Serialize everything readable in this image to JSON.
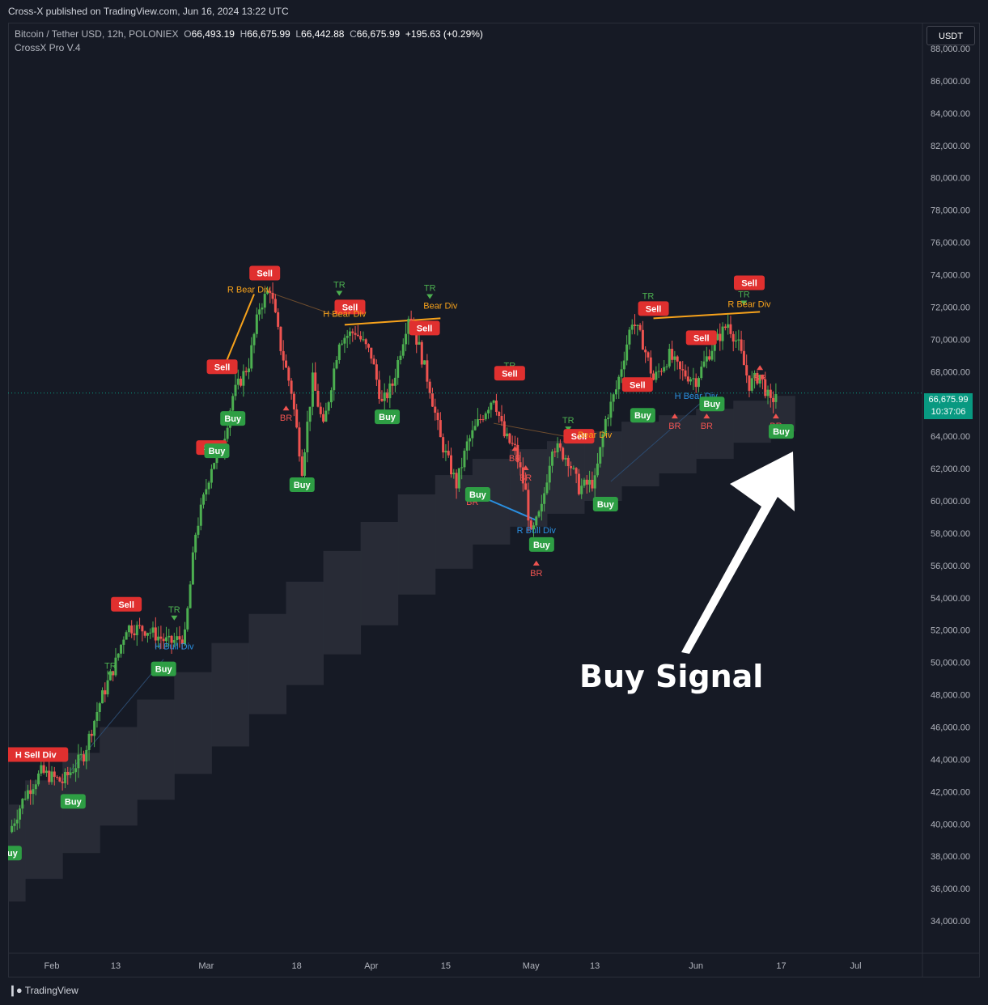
{
  "header": {
    "published": "Cross-X published on TradingView.com, Jun 16, 2024 13:22 UTC"
  },
  "legend": {
    "symbol": "Bitcoin / Tether USD, 12h, POLONIEX",
    "o_label": "O",
    "o": "66,493.19",
    "h_label": "H",
    "h": "66,675.99",
    "l_label": "L",
    "l": "66,442.88",
    "c_label": "C",
    "c": "66,675.99",
    "change": "+195.63 (+0.29%)",
    "indicator": "CrossX Pro V.4"
  },
  "currency": "USDT",
  "price_badge": {
    "price": "66,675.99",
    "countdown": "10:37:06"
  },
  "annotation": "Buy Signal",
  "footer": {
    "brand": "TradingView"
  },
  "colors": {
    "background": "#161a25",
    "up": "#4caf50",
    "down": "#ef5350",
    "buy_label": "#2e9e44",
    "sell_label": "#e0302f",
    "divergence": "#f7a21b",
    "bull_div": "#2a8fe0",
    "cloud": "#2a2e39",
    "price_badge": "#089981"
  },
  "chart_data": {
    "type": "candlestick",
    "y_axis": {
      "min": 32000,
      "max": 88000,
      "step": 2000,
      "labels": [
        "34,000.00",
        "36,000.00",
        "38,000.00",
        "40,000.00",
        "42,000.00",
        "44,000.00",
        "46,000.00",
        "48,000.00",
        "50,000.00",
        "52,000.00",
        "54,000.00",
        "56,000.00",
        "58,000.00",
        "60,000.00",
        "62,000.00",
        "64,000.00",
        "66,000.00",
        "68,000.00",
        "70,000.00",
        "72,000.00",
        "74,000.00",
        "76,000.00",
        "78,000.00",
        "80,000.00",
        "82,000.00",
        "84,000.00",
        "86,000.00",
        "88,000.00"
      ]
    },
    "x_axis": {
      "ticks": [
        {
          "label": "Feb",
          "date": "2024-02-01"
        },
        {
          "label": "13",
          "date": "2024-02-13"
        },
        {
          "label": "Mar",
          "date": "2024-03-01"
        },
        {
          "label": "18",
          "date": "2024-03-18"
        },
        {
          "label": "Apr",
          "date": "2024-04-01"
        },
        {
          "label": "15",
          "date": "2024-04-15"
        },
        {
          "label": "May",
          "date": "2024-05-01"
        },
        {
          "label": "13",
          "date": "2024-05-13"
        },
        {
          "label": "Jun",
          "date": "2024-06-01"
        },
        {
          "label": "17",
          "date": "2024-06-17"
        },
        {
          "label": "Jul",
          "date": "2024-07-01"
        }
      ]
    },
    "price_path": [
      [
        "2024-01-24",
        39500
      ],
      [
        "2024-01-27",
        41800
      ],
      [
        "2024-01-30",
        43200
      ],
      [
        "2024-02-03",
        42600
      ],
      [
        "2024-02-07",
        44300
      ],
      [
        "2024-02-10",
        47500
      ],
      [
        "2024-02-13",
        50000
      ],
      [
        "2024-02-15",
        52200
      ],
      [
        "2024-02-19",
        52000
      ],
      [
        "2024-02-23",
        51200
      ],
      [
        "2024-02-26",
        51600
      ],
      [
        "2024-02-28",
        58000
      ],
      [
        "2024-03-02",
        62200
      ],
      [
        "2024-03-04",
        63400
      ],
      [
        "2024-03-06",
        66500
      ],
      [
        "2024-03-09",
        68500
      ],
      [
        "2024-03-11",
        72000
      ],
      [
        "2024-03-13",
        73200
      ],
      [
        "2024-03-15",
        69500
      ],
      [
        "2024-03-17",
        66800
      ],
      [
        "2024-03-19",
        62000
      ],
      [
        "2024-03-21",
        67500
      ],
      [
        "2024-03-23",
        64500
      ],
      [
        "2024-03-26",
        70000
      ],
      [
        "2024-03-29",
        70500
      ],
      [
        "2024-04-01",
        69000
      ],
      [
        "2024-04-03",
        66000
      ],
      [
        "2024-04-05",
        67200
      ],
      [
        "2024-04-08",
        71500
      ],
      [
        "2024-04-10",
        69500
      ],
      [
        "2024-04-12",
        67000
      ],
      [
        "2024-04-14",
        63800
      ],
      [
        "2024-04-17",
        61000
      ],
      [
        "2024-04-19",
        63500
      ],
      [
        "2024-04-21",
        64800
      ],
      [
        "2024-04-24",
        66500
      ],
      [
        "2024-04-26",
        64000
      ],
      [
        "2024-04-28",
        63200
      ],
      [
        "2024-04-30",
        60500
      ],
      [
        "2024-05-01",
        57800
      ],
      [
        "2024-05-03",
        59500
      ],
      [
        "2024-05-05",
        63500
      ],
      [
        "2024-05-08",
        62600
      ],
      [
        "2024-05-10",
        60800
      ],
      [
        "2024-05-13",
        61200
      ],
      [
        "2024-05-15",
        65000
      ],
      [
        "2024-05-17",
        66900
      ],
      [
        "2024-05-20",
        71200
      ],
      [
        "2024-05-22",
        69800
      ],
      [
        "2024-05-24",
        67500
      ],
      [
        "2024-05-27",
        69000
      ],
      [
        "2024-05-29",
        68000
      ],
      [
        "2024-06-01",
        67500
      ],
      [
        "2024-06-04",
        69500
      ],
      [
        "2024-06-07",
        71000
      ],
      [
        "2024-06-09",
        69600
      ],
      [
        "2024-06-11",
        67200
      ],
      [
        "2024-06-13",
        67800
      ],
      [
        "2024-06-15",
        66000
      ],
      [
        "2024-06-16",
        66676
      ]
    ],
    "signals": [
      {
        "text": "Buy",
        "type": "buy",
        "date": "2024-01-24",
        "price": 38200
      },
      {
        "text": "H Sell Div",
        "type": "sell",
        "date": "2024-01-29",
        "price": 44300
      },
      {
        "text": "Buy",
        "type": "buy",
        "date": "2024-02-05",
        "price": 41400
      },
      {
        "text": "TR",
        "type": "tr",
        "date": "2024-02-12",
        "price": 49600
      },
      {
        "text": "Sell",
        "type": "sell",
        "date": "2024-02-15",
        "price": 53600
      },
      {
        "text": "Buy",
        "type": "buy",
        "date": "2024-02-22",
        "price": 49600
      },
      {
        "text": "H Bull Div",
        "type": "bull",
        "date": "2024-02-24",
        "price": 50800
      },
      {
        "text": "TR",
        "type": "tr",
        "date": "2024-02-24",
        "price": 53100
      },
      {
        "text": "Sell",
        "type": "sell",
        "date": "2024-03-02",
        "price": 63300
      },
      {
        "text": "Buy",
        "type": "buy",
        "date": "2024-03-03",
        "price": 63100
      },
      {
        "text": "Sell",
        "type": "sell",
        "date": "2024-03-04",
        "price": 68300
      },
      {
        "text": "Buy",
        "type": "buy",
        "date": "2024-03-06",
        "price": 65100
      },
      {
        "text": "R Bear Div",
        "type": "div",
        "date": "2024-03-09",
        "price": 72900
      },
      {
        "text": "Sell",
        "type": "sell",
        "date": "2024-03-12",
        "price": 74100
      },
      {
        "text": "BR",
        "type": "br",
        "date": "2024-03-16",
        "price": 65400
      },
      {
        "text": "Buy",
        "type": "buy",
        "date": "2024-03-19",
        "price": 61000
      },
      {
        "text": "TR",
        "type": "tr",
        "date": "2024-03-26",
        "price": 73200
      },
      {
        "text": "Sell",
        "type": "sell",
        "date": "2024-03-28",
        "price": 72000
      },
      {
        "text": "H Bear Div",
        "type": "div",
        "date": "2024-03-27",
        "price": 71400
      },
      {
        "text": "Buy",
        "type": "buy",
        "date": "2024-04-04",
        "price": 65200
      },
      {
        "text": "TR",
        "type": "tr",
        "date": "2024-04-12",
        "price": 73000
      },
      {
        "text": "Bear Div",
        "type": "div",
        "date": "2024-04-14",
        "price": 71900
      },
      {
        "text": "Sell",
        "type": "sell",
        "date": "2024-04-11",
        "price": 70700
      },
      {
        "text": "BR",
        "type": "br",
        "date": "2024-04-20",
        "price": 60200
      },
      {
        "text": "Buy",
        "type": "buy",
        "date": "2024-04-21",
        "price": 60400
      },
      {
        "text": "TR",
        "type": "tr",
        "date": "2024-04-27",
        "price": 68200
      },
      {
        "text": "Sell",
        "type": "sell",
        "date": "2024-04-27",
        "price": 67900
      },
      {
        "text": "BR",
        "type": "br",
        "date": "2024-04-28",
        "price": 62900
      },
      {
        "text": "BR",
        "type": "br",
        "date": "2024-04-30",
        "price": 61700
      },
      {
        "text": "R Bull Div",
        "type": "bull",
        "date": "2024-05-02",
        "price": 58000
      },
      {
        "text": "Buy",
        "type": "buy",
        "date": "2024-05-03",
        "price": 57300
      },
      {
        "text": "BR",
        "type": "br",
        "date": "2024-05-02",
        "price": 55800
      },
      {
        "text": "TR",
        "type": "tr",
        "date": "2024-05-08",
        "price": 64800
      },
      {
        "text": "Sell",
        "type": "sell",
        "date": "2024-05-10",
        "price": 64000
      },
      {
        "text": "Bear Div",
        "type": "div",
        "date": "2024-05-13",
        "price": 63900
      },
      {
        "text": "Buy",
        "type": "buy",
        "date": "2024-05-15",
        "price": 59800
      },
      {
        "text": "Sell",
        "type": "sell",
        "date": "2024-05-21",
        "price": 67200
      },
      {
        "text": "Buy",
        "type": "buy",
        "date": "2024-05-22",
        "price": 65300
      },
      {
        "text": "TR",
        "type": "tr",
        "date": "2024-05-23",
        "price": 72500
      },
      {
        "text": "Sell",
        "type": "sell",
        "date": "2024-05-24",
        "price": 71900
      },
      {
        "text": "BR",
        "type": "br",
        "date": "2024-05-28",
        "price": 64900
      },
      {
        "text": "Sell",
        "type": "sell",
        "date": "2024-06-02",
        "price": 70100
      },
      {
        "text": "H Bear Div",
        "type": "bull",
        "date": "2024-06-01",
        "price": 66300
      },
      {
        "text": "BR",
        "type": "br",
        "date": "2024-06-03",
        "price": 64900
      },
      {
        "text": "Buy",
        "type": "buy",
        "date": "2024-06-04",
        "price": 66000
      },
      {
        "text": "TR",
        "type": "tr",
        "date": "2024-06-10",
        "price": 72600
      },
      {
        "text": "Sell",
        "type": "sell",
        "date": "2024-06-11",
        "price": 73500
      },
      {
        "text": "R Bear Div",
        "type": "div",
        "date": "2024-06-11",
        "price": 72000
      },
      {
        "text": "BR",
        "type": "br",
        "date": "2024-06-13",
        "price": 67900
      },
      {
        "text": "BR",
        "type": "br",
        "date": "2024-06-16",
        "price": 64900
      },
      {
        "text": "Buy",
        "type": "buy",
        "date": "2024-06-17",
        "price": 64300
      }
    ],
    "divergence_lines": [
      {
        "from": [
          "2024-03-04",
          68000
        ],
        "to": [
          "2024-03-10",
          72800
        ],
        "type": "div"
      },
      {
        "from": [
          "2024-03-12",
          73000
        ],
        "to": [
          "2024-03-26",
          71400
        ],
        "type": "faint"
      },
      {
        "from": [
          "2024-03-27",
          70900
        ],
        "to": [
          "2024-04-14",
          71300
        ],
        "type": "div"
      },
      {
        "from": [
          "2024-04-24",
          64800
        ],
        "to": [
          "2024-05-09",
          63900
        ],
        "type": "faint"
      },
      {
        "from": [
          "2024-05-24",
          71300
        ],
        "to": [
          "2024-06-13",
          71700
        ],
        "type": "div"
      },
      {
        "from": [
          "2024-04-20",
          60500
        ],
        "to": [
          "2024-05-02",
          58800
        ],
        "type": "bull"
      },
      {
        "from": [
          "2024-02-03",
          42700
        ],
        "to": [
          "2024-02-22",
          50200
        ],
        "type": "thin"
      },
      {
        "from": [
          "2024-05-16",
          61200
        ],
        "to": [
          "2024-06-02",
          66100
        ],
        "type": "thin"
      }
    ],
    "cloud": [
      [
        "2024-01-20",
        35200,
        41200
      ],
      [
        "2024-01-27",
        36600,
        42700
      ],
      [
        "2024-02-03",
        38200,
        44400
      ],
      [
        "2024-02-10",
        39900,
        46000
      ],
      [
        "2024-02-17",
        41500,
        47700
      ],
      [
        "2024-02-24",
        43100,
        49400
      ],
      [
        "2024-03-02",
        44800,
        51200
      ],
      [
        "2024-03-09",
        46800,
        53000
      ],
      [
        "2024-03-16",
        48600,
        55000
      ],
      [
        "2024-03-23",
        50500,
        56900
      ],
      [
        "2024-03-30",
        52300,
        58700
      ],
      [
        "2024-04-06",
        54200,
        60400
      ],
      [
        "2024-04-13",
        55800,
        61600
      ],
      [
        "2024-04-20",
        57300,
        62600
      ],
      [
        "2024-04-27",
        58400,
        63200
      ],
      [
        "2024-05-04",
        59200,
        63700
      ],
      [
        "2024-05-11",
        60000,
        64300
      ],
      [
        "2024-05-18",
        60900,
        64900
      ],
      [
        "2024-05-25",
        61700,
        65300
      ],
      [
        "2024-06-01",
        62600,
        65700
      ],
      [
        "2024-06-08",
        63600,
        66200
      ],
      [
        "2024-06-15",
        64300,
        66500
      ]
    ]
  }
}
